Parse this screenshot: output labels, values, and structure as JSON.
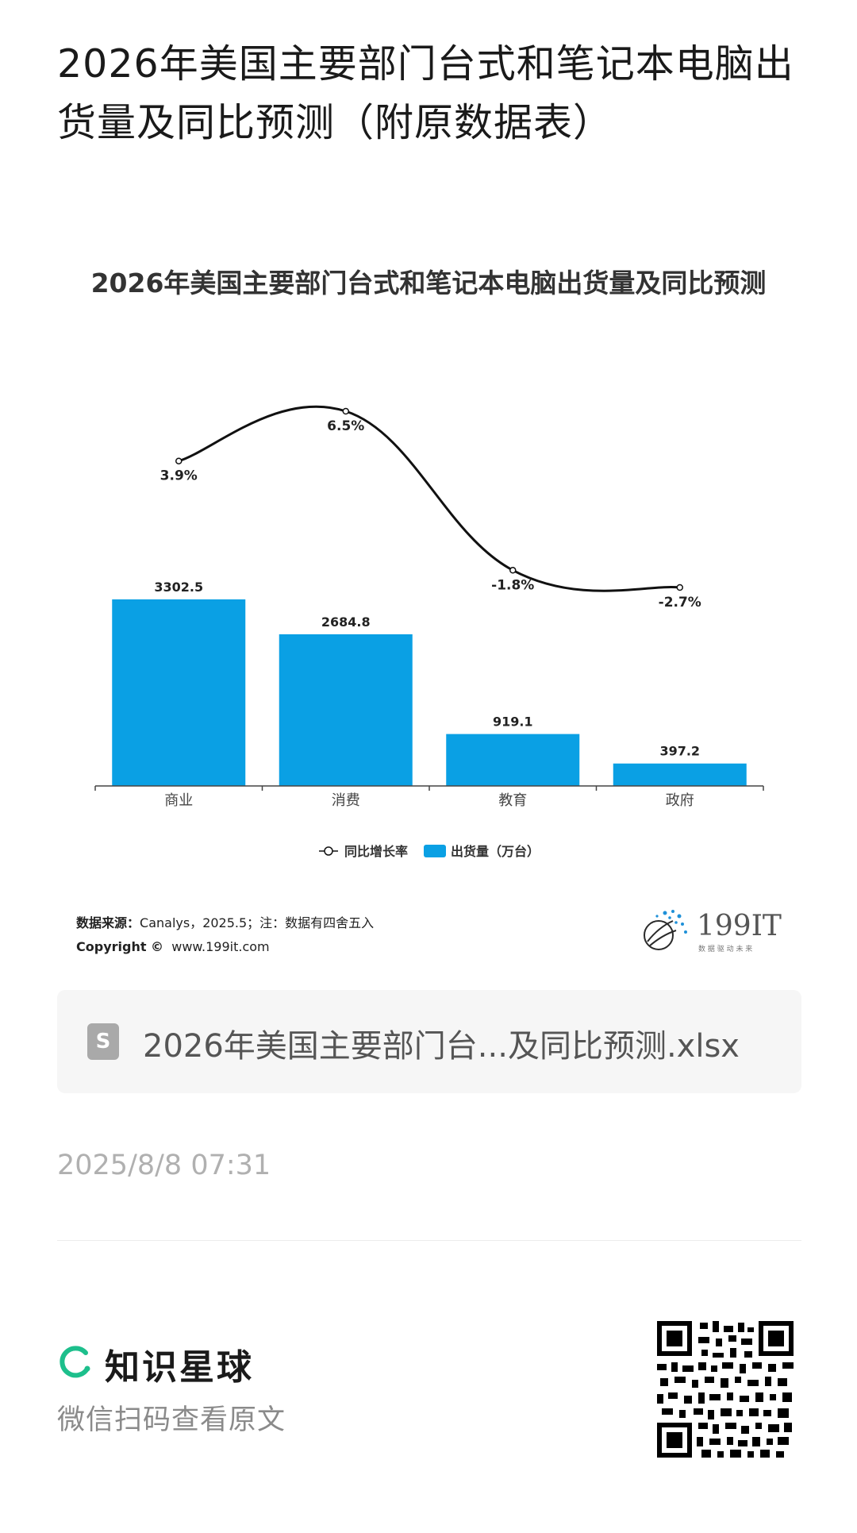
{
  "page": {
    "title": "2026年美国主要部门台式和笔记本电脑出货量及同比预测（附原数据表）"
  },
  "chart": {
    "title": "2026年美国主要部门台式和笔记本电脑出货量及同比预测",
    "source_label": "数据来源：",
    "source_text": "Canalys，2025.5；注：数据有四舍五入",
    "copyright_label": "Copyright ©",
    "copyright_text": "www.199it.com",
    "logo_text": "199IT",
    "logo_tagline": "数 据 驱 动 未 来"
  },
  "chart_data": {
    "type": "bar",
    "categories": [
      "商业",
      "消费",
      "教育",
      "政府"
    ],
    "series": [
      {
        "name": "出货量（万台）",
        "type": "bar",
        "values": [
          3302.5,
          2684.8,
          919.1,
          397.2
        ],
        "labels": [
          "3302.5",
          "2684.8",
          "919.1",
          "397.2"
        ],
        "color": "#0aa0e4"
      },
      {
        "name": "同比增长率",
        "type": "line",
        "values": [
          3.9,
          6.5,
          -1.8,
          -2.7
        ],
        "labels": [
          "3.9%",
          "6.5%",
          "-1.8%",
          "-2.7%"
        ],
        "color": "#111111"
      }
    ],
    "legend": "bottom",
    "grid": false
  },
  "file": {
    "icon_letter": "S",
    "name": "2026年美国主要部门台...及同比预测.xlsx"
  },
  "timestamp": "2025/8/8 07:31",
  "footer": {
    "brand": "知识星球",
    "subtitle": "微信扫码查看原文"
  }
}
